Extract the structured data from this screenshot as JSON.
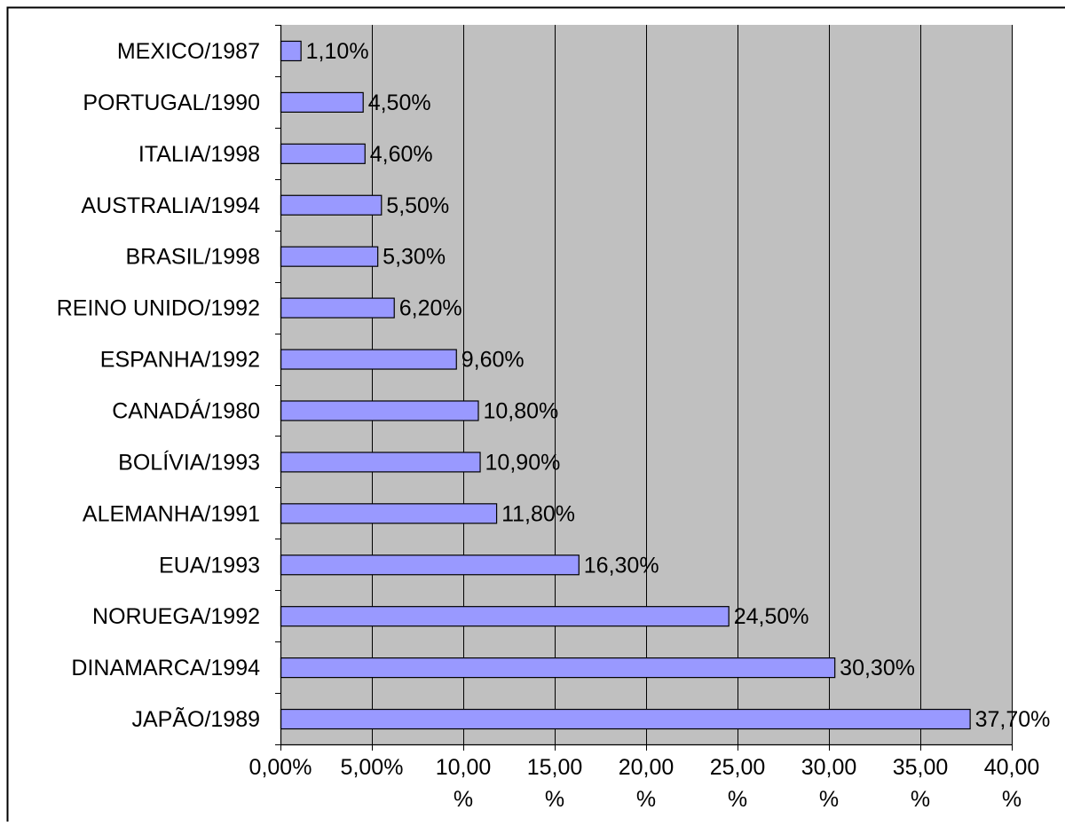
{
  "colors": {
    "plot_background": "#c0c0c0",
    "bar_fill": "#9999ff",
    "bar_stroke": "#000000",
    "gridline": "#000000",
    "page_background": "#ffffff"
  },
  "chart_data": {
    "type": "bar",
    "orientation": "horizontal",
    "title": "",
    "xlabel": "",
    "ylabel": "",
    "categories": [
      "MEXICO/1987",
      "PORTUGAL/1990",
      "ITALIA/1998",
      "AUSTRALIA/1994",
      "BRASIL/1998",
      "REINO UNIDO/1992",
      "ESPANHA/1992",
      "CANADÁ/1980",
      "BOLÍVIA/1993",
      "ALEMANHA/1991",
      "EUA/1993",
      "NORUEGA/1992",
      "DINAMARCA/1994",
      "JAPÃO/1989"
    ],
    "values": [
      1.1,
      4.5,
      4.6,
      5.5,
      5.3,
      6.2,
      9.6,
      10.8,
      10.9,
      11.8,
      16.3,
      24.5,
      30.3,
      37.7
    ],
    "data_labels": [
      "1,10%",
      "4,50%",
      "4,60%",
      "5,50%",
      "5,30%",
      "6,20%",
      "9,60%",
      "10,80%",
      "10,90%",
      "11,80%",
      "16,30%",
      "24,50%",
      "30,30%",
      "37,70%"
    ],
    "xlim": [
      0,
      40
    ],
    "x_ticks": [
      0,
      5,
      10,
      15,
      20,
      25,
      30,
      35,
      40
    ],
    "x_tick_labels": [
      [
        "0,00%"
      ],
      [
        "5,00%"
      ],
      [
        "10,00",
        "%"
      ],
      [
        "15,00",
        "%"
      ],
      [
        "20,00",
        "%"
      ],
      [
        "25,00",
        "%"
      ],
      [
        "30,00",
        "%"
      ],
      [
        "35,00",
        "%"
      ],
      [
        "40,00",
        "%"
      ]
    ],
    "grid": "vertical major gridlines",
    "legend": "none"
  }
}
